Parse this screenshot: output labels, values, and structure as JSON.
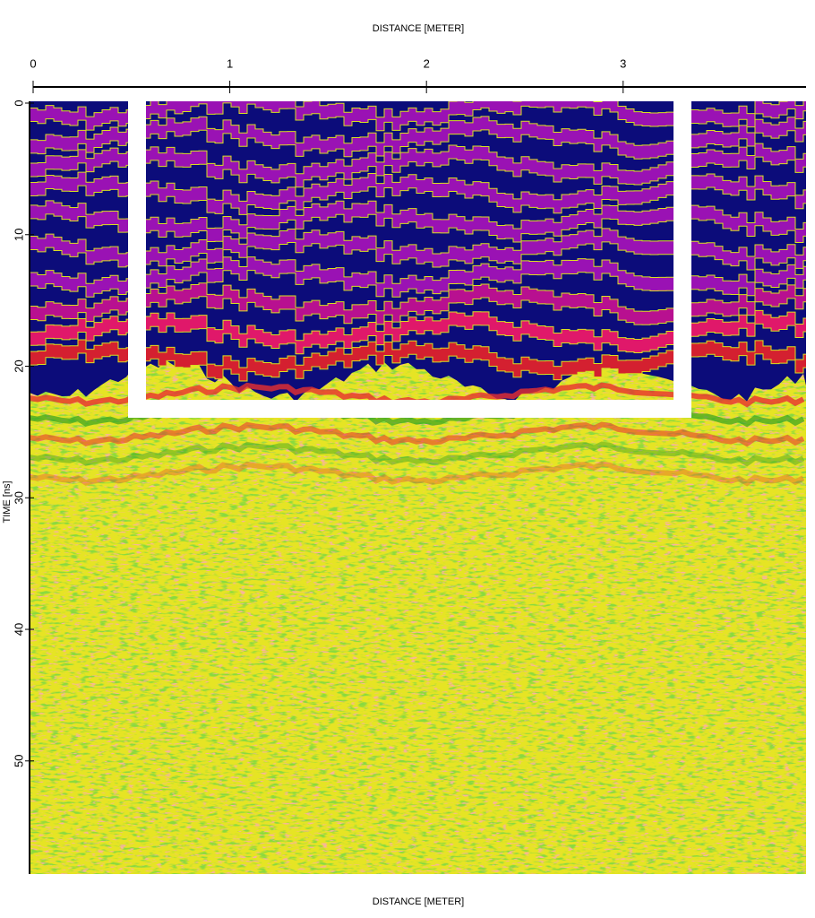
{
  "chart_data": {
    "type": "radargram",
    "xlabel": "DISTANCE [METER]",
    "ylabel": "TIME [ns]",
    "xlim": [
      0,
      3.93
    ],
    "xticks": [
      0,
      1,
      2,
      3
    ],
    "ylim": [
      0,
      58.6
    ],
    "yticks": [
      0,
      10,
      20,
      30,
      40,
      50
    ]
  }
}
